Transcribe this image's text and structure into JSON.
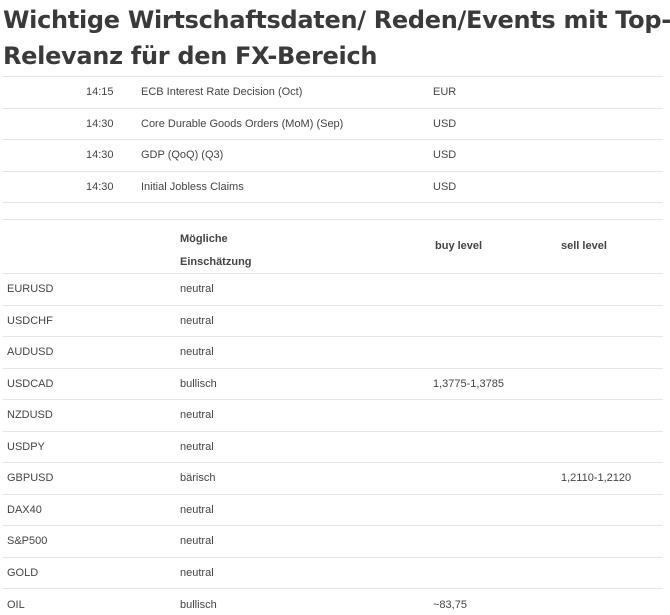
{
  "title": {
    "line1": "Wichtige Wirtschaftsdaten/ Reden/Events mit Top-",
    "line2": "Relevanz für den FX-Bereich"
  },
  "events": [
    {
      "time": "14:15",
      "event": "ECB Interest Rate Decision (Oct)",
      "currency": "EUR"
    },
    {
      "time": "14:30",
      "event": "Core Durable Goods Orders (MoM) (Sep)",
      "currency": "USD"
    },
    {
      "time": "14:30",
      "event": "GDP (QoQ) (Q3)",
      "currency": "USD"
    },
    {
      "time": "14:30",
      "event": "Initial Jobless Claims",
      "currency": "USD"
    }
  ],
  "assessment_table": {
    "headers": {
      "einschaetzung_line1": "Mögliche",
      "einschaetzung_line2": "Einschätzung",
      "buy": "buy level",
      "sell": "sell level"
    },
    "rows": [
      {
        "pair": "EURUSD",
        "assessment": "neutral",
        "buy": "",
        "sell": ""
      },
      {
        "pair": "USDCHF",
        "assessment": "neutral",
        "buy": "",
        "sell": ""
      },
      {
        "pair": "AUDUSD",
        "assessment": "neutral",
        "buy": "",
        "sell": ""
      },
      {
        "pair": "USDCAD",
        "assessment": "bullisch",
        "buy": "1,3775-1,3785",
        "sell": ""
      },
      {
        "pair": "NZDUSD",
        "assessment": "neutral",
        "buy": "",
        "sell": ""
      },
      {
        "pair": "USDPY",
        "assessment": "neutral",
        "buy": "",
        "sell": ""
      },
      {
        "pair": "GBPUSD",
        "assessment": "bärisch",
        "buy": "",
        "sell": "1,2110-1,2120"
      },
      {
        "pair": "DAX40",
        "assessment": "neutral",
        "buy": "",
        "sell": ""
      },
      {
        "pair": "S&P500",
        "assessment": "neutral",
        "buy": "",
        "sell": ""
      },
      {
        "pair": "GOLD",
        "assessment": "neutral",
        "buy": "",
        "sell": ""
      },
      {
        "pair": "OIL",
        "assessment": "bullisch",
        "buy": "~83,75",
        "sell": ""
      }
    ]
  }
}
